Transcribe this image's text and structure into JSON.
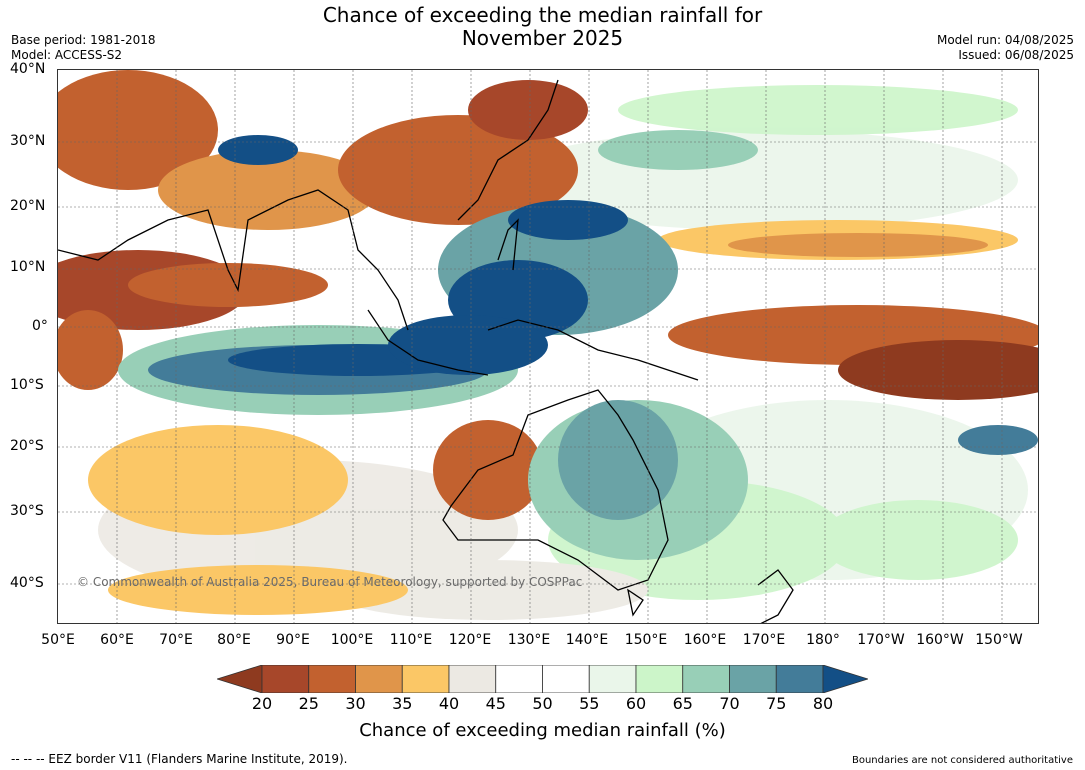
{
  "title_line1": "Chance of exceeding the median rainfall for",
  "title_line2": "November 2025",
  "base_period": "Base period: 1981-2018",
  "model": "Model: ACCESS-S2",
  "model_run": "Model run: 04/08/2025",
  "issued": "Issued: 06/08/2025",
  "lat_labels": [
    "40°N",
    "30°N",
    "20°N",
    "10°N",
    "0°",
    "10°S",
    "20°S",
    "30°S",
    "40°S"
  ],
  "lon_labels": [
    "50°E",
    "60°E",
    "70°E",
    "80°E",
    "90°E",
    "100°E",
    "110°E",
    "120°E",
    "130°E",
    "140°E",
    "150°E",
    "160°E",
    "170°E",
    "180°",
    "170°W",
    "160°W",
    "150°W"
  ],
  "copyright": "© Commonwealth of Australia 2025, Bureau of Meteorology, supported by COSPPac",
  "colorbar": {
    "ticks": [
      "20",
      "25",
      "30",
      "35",
      "40",
      "45",
      "50",
      "55",
      "60",
      "65",
      "70",
      "75",
      "80"
    ],
    "colors": [
      "#8e3a1f",
      "#a7472a",
      "#c2612f",
      "#e0954a",
      "#fbc766",
      "#ece9e3",
      "#ffffff",
      "#ffffff",
      "#eaf6ea",
      "#ccf5c9",
      "#98cfb7",
      "#6aa3a6",
      "#437c99",
      "#134f86"
    ],
    "label": "Chance of exceeding median rainfall (%)"
  },
  "footer_left": "--  --  -- EEZ border V11 (Flanders Marine Institute, 2019).",
  "footer_right": "Boundaries are not considered authoritative"
}
